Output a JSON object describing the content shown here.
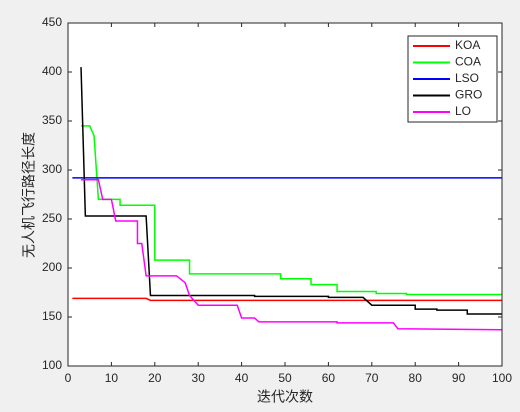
{
  "chart_data": {
    "type": "line",
    "xlabel": "迭代次数",
    "ylabel": "无人机飞行路径长度",
    "xlim": [
      0,
      100
    ],
    "xticks": [
      0,
      10,
      20,
      30,
      40,
      50,
      60,
      70,
      80,
      90,
      100
    ],
    "ylim": [
      100,
      450
    ],
    "yticks": [
      100,
      150,
      200,
      250,
      300,
      350,
      400,
      450
    ],
    "legend": "upper-right",
    "series": [
      {
        "name": "KOA",
        "color": "#ff0000",
        "x": [
          1,
          18,
          19,
          100
        ],
        "values": [
          169,
          169,
          167,
          167
        ]
      },
      {
        "name": "COA",
        "color": "#00ff00",
        "x": [
          3,
          5,
          6,
          7,
          12,
          12,
          20,
          20,
          28,
          28,
          49,
          49,
          56,
          56,
          62,
          62,
          71,
          71,
          78,
          78,
          100
        ],
        "values": [
          345,
          345,
          335,
          270,
          270,
          264,
          264,
          208,
          208,
          194,
          194,
          189,
          189,
          183,
          183,
          176,
          176,
          174,
          174,
          173,
          173
        ]
      },
      {
        "name": "LSO",
        "color": "#0000ff",
        "x": [
          1,
          100
        ],
        "values": [
          292,
          292
        ]
      },
      {
        "name": "GRO",
        "color": "#000000",
        "x": [
          3,
          4,
          18,
          19,
          43,
          43,
          60,
          60,
          68,
          70,
          80,
          80,
          85,
          85,
          92,
          92,
          100
        ],
        "values": [
          405,
          253,
          253,
          172,
          172,
          171,
          171,
          170,
          170,
          162,
          162,
          158,
          158,
          157,
          157,
          153,
          153
        ]
      },
      {
        "name": "LO",
        "color": "#ff00ff",
        "x": [
          3,
          7,
          8,
          10,
          11,
          16,
          16,
          17,
          18,
          25,
          27,
          28,
          30,
          39,
          40,
          43,
          44,
          62,
          62,
          75,
          76,
          100
        ],
        "values": [
          290,
          290,
          270,
          270,
          248,
          248,
          225,
          225,
          192,
          192,
          185,
          172,
          162,
          162,
          149,
          149,
          145,
          145,
          144,
          144,
          138,
          137
        ]
      }
    ]
  }
}
